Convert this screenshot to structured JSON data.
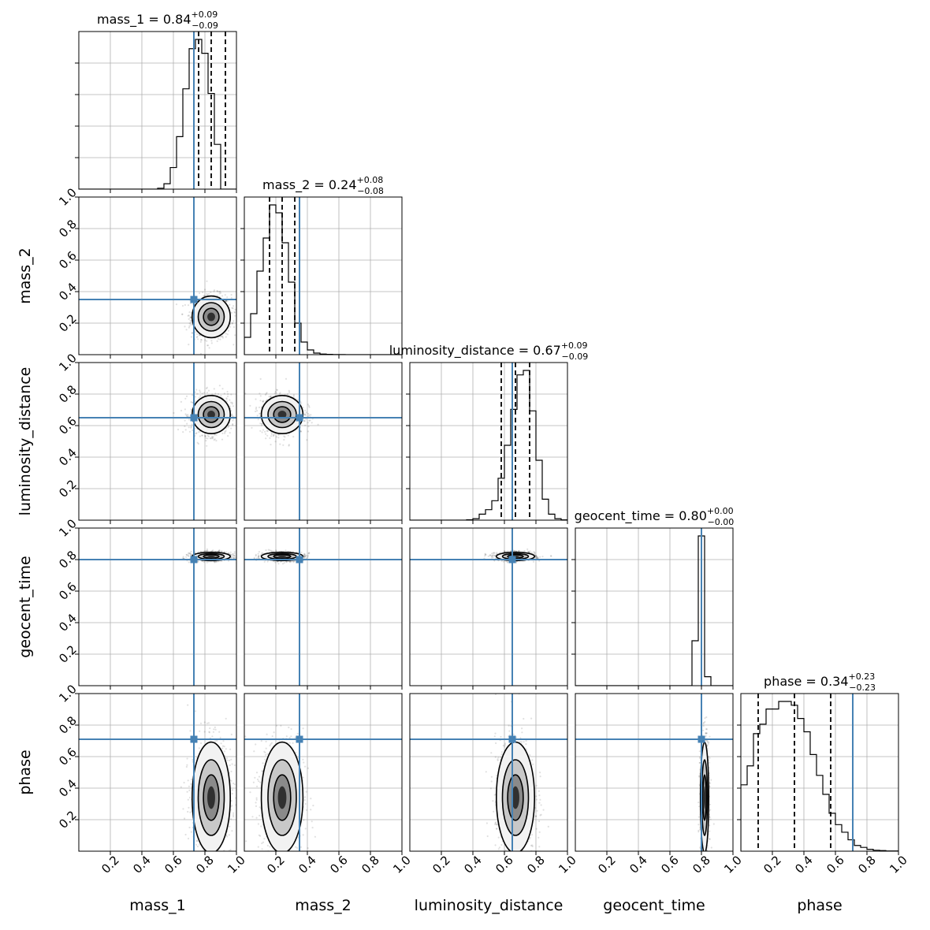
{
  "chart_data": {
    "type": "corner",
    "parameters": [
      "mass_1",
      "mass_2",
      "luminosity_distance",
      "geocent_time",
      "phase"
    ],
    "axis_labels": [
      "mass_1",
      "mass_2",
      "luminosity_distance",
      "geocent_time",
      "phase"
    ],
    "titles": [
      {
        "name": "mass_1",
        "value": "0.84",
        "plus": "+0.09",
        "minus": "−0.09"
      },
      {
        "name": "mass_2",
        "value": "0.24",
        "plus": "+0.08",
        "minus": "−0.08"
      },
      {
        "name": "luminosity_distance",
        "value": "0.67",
        "plus": "+0.09",
        "minus": "−0.09"
      },
      {
        "name": "geocent_time",
        "value": "0.80",
        "plus": "+0.00",
        "minus": "−0.00"
      },
      {
        "name": "phase",
        "value": "0.34",
        "plus": "+0.23",
        "minus": "−0.23"
      }
    ],
    "range": [
      0,
      1
    ],
    "ticks": [
      0.2,
      0.4,
      0.6,
      0.8,
      1.0
    ],
    "tick_labels": [
      "0.2",
      "0.4",
      "0.6",
      "0.8",
      "1.0"
    ],
    "grid": true,
    "truths": [
      0.73,
      0.35,
      0.65,
      0.8,
      0.71
    ],
    "truth_color": "#4682b4",
    "quantiles": [
      [
        0.76,
        0.84,
        0.93
      ],
      [
        0.16,
        0.24,
        0.32
      ],
      [
        0.58,
        0.67,
        0.76
      ],
      [
        0.8,
        0.8,
        0.8
      ],
      [
        0.11,
        0.34,
        0.57
      ]
    ],
    "histograms": [
      {
        "edges_start": 0.5,
        "bin_width": 0.04,
        "heights": [
          0.006,
          0.035,
          0.14,
          0.34,
          0.65,
          0.91,
          0.97,
          0.88,
          0.62,
          0.29
        ]
      },
      {
        "edges_start": 0.0,
        "bin_width": 0.04,
        "heights": [
          0.11,
          0.26,
          0.53,
          0.74,
          0.95,
          0.9,
          0.71,
          0.46,
          0.2,
          0.08,
          0.03,
          0.01,
          0.004,
          0.002,
          0.001,
          0.001
        ]
      },
      {
        "edges_start": 0.36,
        "bin_width": 0.04,
        "heights": [
          0.003,
          0.01,
          0.04,
          0.07,
          0.13,
          0.28,
          0.5,
          0.74,
          0.97,
          1.0,
          0.73,
          0.4,
          0.14,
          0.04,
          0.01,
          0.002
        ]
      },
      {
        "edges_start": 0.74,
        "bin_width": 0.04,
        "heights": [
          0.3,
          1.0,
          0.06
        ]
      },
      {
        "edges_start": 0.0,
        "bin_width": 0.04,
        "heights": [
          0.35,
          0.45,
          0.62,
          0.67,
          0.75,
          0.75,
          0.79,
          0.79,
          0.77,
          0.7,
          0.63,
          0.51,
          0.4,
          0.3,
          0.2,
          0.14,
          0.1,
          0.06,
          0.03,
          0.02,
          0.01,
          0.005,
          0.003,
          0.001,
          0.001
        ]
      }
    ],
    "posterior": {
      "means": [
        0.84,
        0.24,
        0.67,
        0.82,
        0.34
      ],
      "sigmas": [
        0.055,
        0.06,
        0.055,
        0.012,
        0.16
      ]
    }
  }
}
